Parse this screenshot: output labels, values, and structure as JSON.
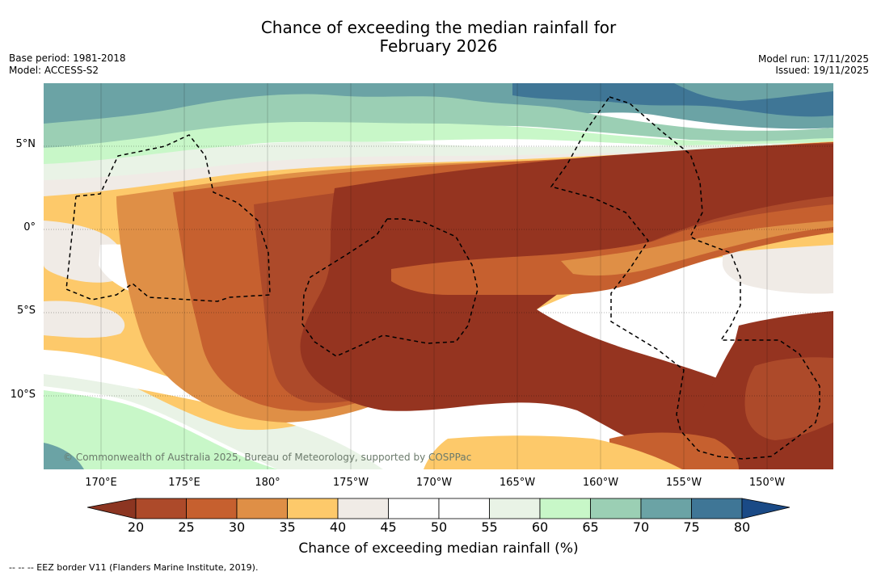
{
  "title_line1": "Chance of exceeding the median rainfall for",
  "title_line2": "February 2026",
  "meta_left": {
    "base_period": "Base period: 1981-2018",
    "model": "Model: ACCESS-S2"
  },
  "meta_right": {
    "model_run": "Model run: 17/11/2025",
    "issued": "Issued: 19/11/2025"
  },
  "lat_ticks": [
    "5°N",
    "0°",
    "5°S",
    "10°S"
  ],
  "lon_ticks": [
    "170°E",
    "175°E",
    "180°",
    "175°W",
    "170°W",
    "165°W",
    "160°W",
    "155°W",
    "150°W"
  ],
  "copyright": "© Commonwealth of Australia 2025, Bureau of Meteorology, supported by COSPPac",
  "colorbar": {
    "labels": [
      "20",
      "25",
      "30",
      "35",
      "40",
      "45",
      "50",
      "55",
      "60",
      "65",
      "70",
      "75",
      "80"
    ],
    "colors": [
      "#ad4a2a",
      "#c6602f",
      "#df8f46",
      "#fdc96a",
      "#f0ebe6",
      "#ffffff",
      "#ffffff",
      "#e9f3e6",
      "#c8f7c8",
      "#9bcfb4",
      "#6ba3a5",
      "#3f7696"
    ],
    "under_color": "#8c3521",
    "over_color": "#1a4a86",
    "title": "Chance of exceeding median rainfall (%)"
  },
  "footer": "--  --  -- EEZ border V11 (Flanders Marine Institute, 2019).",
  "colors": {
    "deep_brown": "#953420",
    "brown": "#ad4a2a",
    "orange": "#c6602f",
    "light_orange": "#df8f46",
    "yellow": "#fdc96a",
    "beige": "#f0ebe6",
    "white": "#ffffff",
    "pale_green": "#e9f3e6",
    "light_green": "#c8f7c8",
    "green": "#9bcfb4",
    "teal": "#6ba3a5",
    "dark_teal": "#3f7696"
  }
}
